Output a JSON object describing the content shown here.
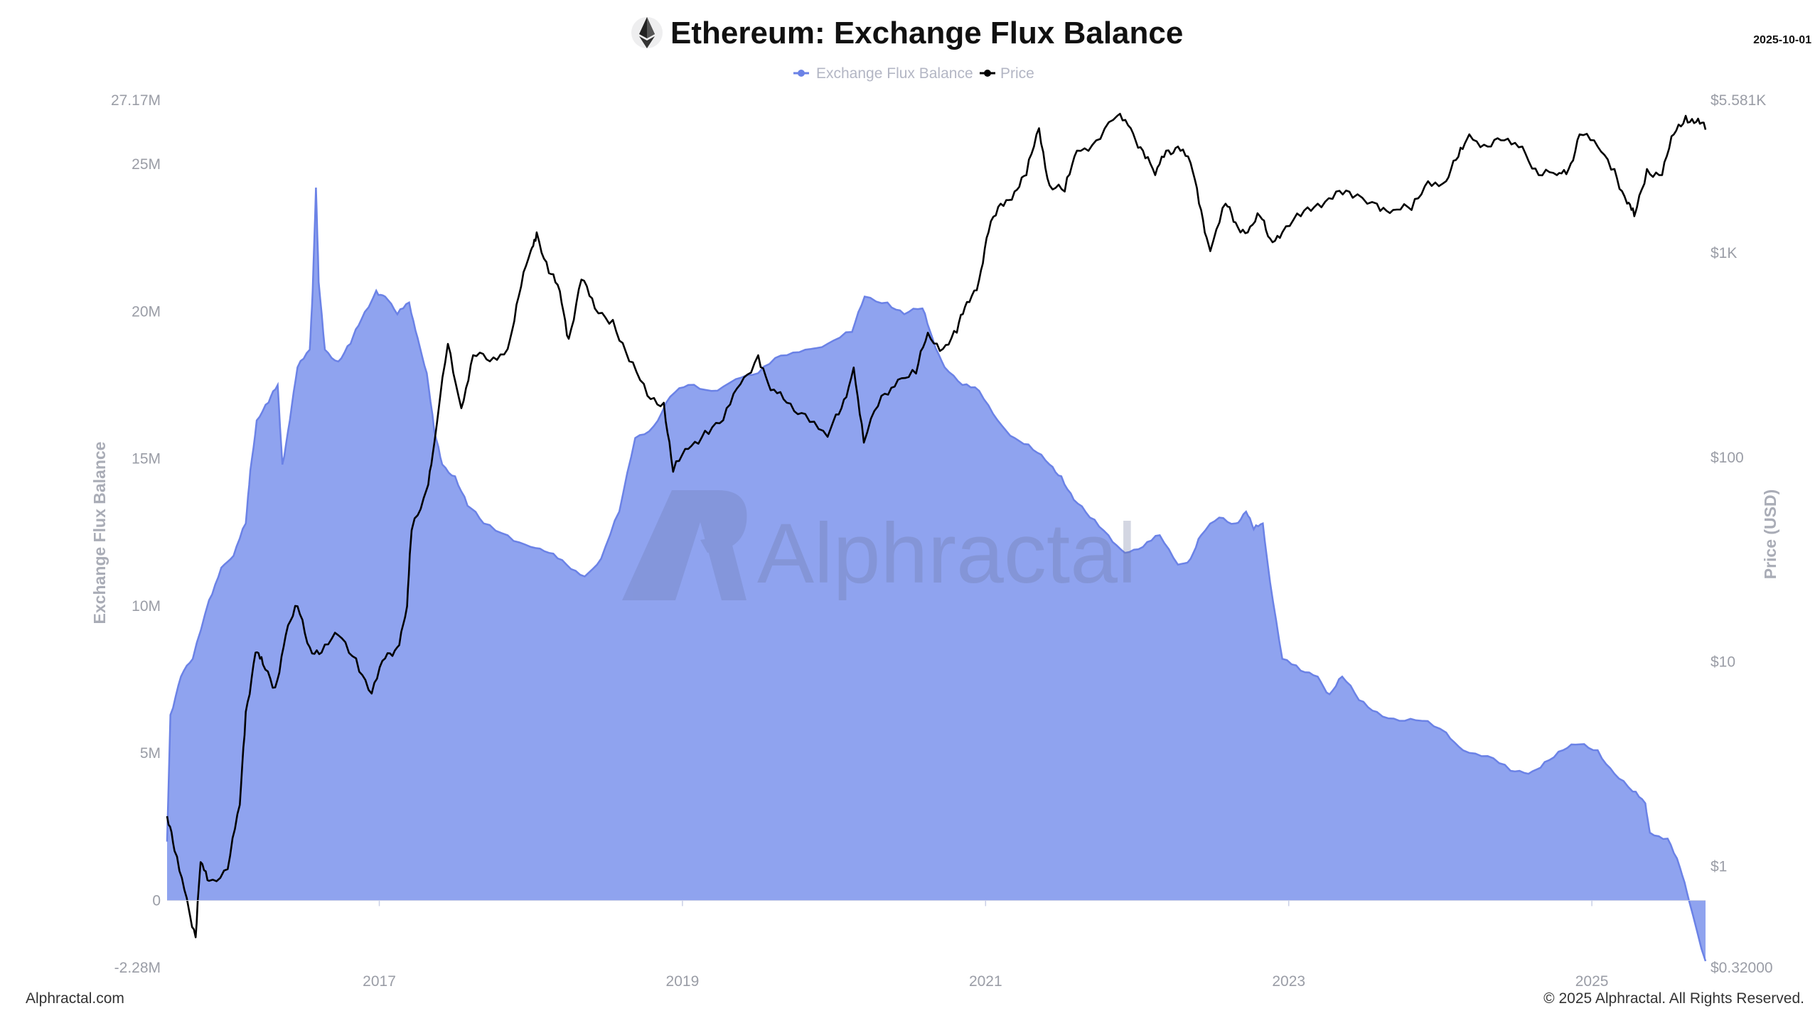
{
  "header": {
    "title": "Ethereum: Exchange Flux Balance",
    "date": "2025-10-01",
    "icon": "ethereum-icon"
  },
  "footer": {
    "left": "Alphractal.com",
    "right": "© 2025 Alphractal. All Rights Reserved."
  },
  "watermark": "Alphractal",
  "chart_data": {
    "type": "area+line",
    "title": "Ethereum: Exchange Flux Balance",
    "legend": {
      "placement": "top-center",
      "entries": [
        "Exchange Flux Balance",
        "Price"
      ]
    },
    "grid": false,
    "colors": {
      "flux_fill": "#8fa3ef",
      "flux_line": "#6b82e6",
      "price": "#000000"
    },
    "x": {
      "type": "date",
      "range": [
        "2015-08-07",
        "2025-10-01"
      ],
      "ticks": [
        "2017",
        "2019",
        "2021",
        "2023",
        "2025"
      ]
    },
    "y_left": {
      "label": "Exchange Flux Balance",
      "range": [
        -2.28,
        27.17
      ],
      "unit": "M",
      "ticks": [
        {
          "v": 27.17,
          "label": "27.17M"
        },
        {
          "v": 25,
          "label": "25M"
        },
        {
          "v": 20,
          "label": "20M"
        },
        {
          "v": 15,
          "label": "15M"
        },
        {
          "v": 10,
          "label": "10M"
        },
        {
          "v": 5,
          "label": "5M"
        },
        {
          "v": 0,
          "label": "0"
        },
        {
          "v": -2.28,
          "label": "-2.28M"
        }
      ]
    },
    "y_right": {
      "label": "Price (USD)",
      "scale": "log",
      "range": [
        0.32,
        5581
      ],
      "ticks": [
        {
          "v": 5581,
          "label": "$5.581K"
        },
        {
          "v": 1000,
          "label": "$1K"
        },
        {
          "v": 100,
          "label": "$100"
        },
        {
          "v": 10,
          "label": "$10"
        },
        {
          "v": 1,
          "label": "$1"
        },
        {
          "v": 0.32,
          "label": "$0.32000"
        }
      ]
    },
    "series": [
      {
        "name": "Exchange Flux Balance",
        "axis": "left",
        "unit": "M",
        "points": [
          [
            "2015-08-07",
            2.0
          ],
          [
            "2015-08-15",
            6.3
          ],
          [
            "2015-09-10",
            7.6
          ],
          [
            "2015-10-08",
            8.2
          ],
          [
            "2015-11-17",
            10.2
          ],
          [
            "2015-12-16",
            11.3
          ],
          [
            "2016-01-15",
            11.7
          ],
          [
            "2016-02-14",
            12.8
          ],
          [
            "2016-02-25",
            14.6
          ],
          [
            "2016-03-10",
            16.3
          ],
          [
            "2016-04-08",
            16.9
          ],
          [
            "2016-04-30",
            17.5
          ],
          [
            "2016-05-11",
            14.8
          ],
          [
            "2016-05-29",
            16.3
          ],
          [
            "2016-06-17",
            18.1
          ],
          [
            "2016-07-16",
            18.7
          ],
          [
            "2016-07-23",
            20.7
          ],
          [
            "2016-07-31",
            24.2
          ],
          [
            "2016-08-07",
            21.0
          ],
          [
            "2016-08-22",
            18.7
          ],
          [
            "2016-09-24",
            18.3
          ],
          [
            "2016-10-23",
            18.9
          ],
          [
            "2016-11-18",
            19.7
          ],
          [
            "2016-12-24",
            20.7
          ],
          [
            "2017-01-15",
            20.5
          ],
          [
            "2017-02-14",
            19.9
          ],
          [
            "2017-03-12",
            20.3
          ],
          [
            "2017-04-02",
            19.1
          ],
          [
            "2017-04-24",
            17.9
          ],
          [
            "2017-05-12",
            15.9
          ],
          [
            "2017-05-31",
            14.8
          ],
          [
            "2017-07-01",
            14.4
          ],
          [
            "2017-07-31",
            13.4
          ],
          [
            "2017-09-09",
            12.8
          ],
          [
            "2017-11-06",
            12.4
          ],
          [
            "2018-01-01",
            12.0
          ],
          [
            "2018-02-14",
            11.8
          ],
          [
            "2018-03-26",
            11.4
          ],
          [
            "2018-05-09",
            11.0
          ],
          [
            "2018-06-18",
            11.6
          ],
          [
            "2018-08-01",
            13.2
          ],
          [
            "2018-09-09",
            15.7
          ],
          [
            "2018-10-23",
            16.1
          ],
          [
            "2018-12-02",
            17.1
          ],
          [
            "2019-01-15",
            17.5
          ],
          [
            "2019-03-10",
            17.3
          ],
          [
            "2019-05-08",
            17.7
          ],
          [
            "2019-07-01",
            17.9
          ],
          [
            "2019-08-25",
            18.5
          ],
          [
            "2019-10-23",
            18.7
          ],
          [
            "2019-12-16",
            18.9
          ],
          [
            "2020-02-14",
            19.3
          ],
          [
            "2020-03-14",
            20.5
          ],
          [
            "2020-05-08",
            20.3
          ],
          [
            "2020-06-18",
            19.9
          ],
          [
            "2020-08-01",
            20.1
          ],
          [
            "2020-08-25",
            19.1
          ],
          [
            "2020-09-24",
            18.1
          ],
          [
            "2020-11-06",
            17.5
          ],
          [
            "2020-12-16",
            17.3
          ],
          [
            "2021-01-30",
            16.3
          ],
          [
            "2021-03-10",
            15.7
          ],
          [
            "2021-04-24",
            15.3
          ],
          [
            "2021-06-03",
            14.8
          ],
          [
            "2021-07-01",
            14.4
          ],
          [
            "2021-07-31",
            13.6
          ],
          [
            "2021-09-09",
            13.0
          ],
          [
            "2021-10-23",
            12.4
          ],
          [
            "2021-12-02",
            11.8
          ],
          [
            "2022-01-15",
            12.0
          ],
          [
            "2022-02-25",
            12.4
          ],
          [
            "2022-04-08",
            11.4
          ],
          [
            "2022-05-08",
            11.6
          ],
          [
            "2022-06-03",
            12.4
          ],
          [
            "2022-07-16",
            13.0
          ],
          [
            "2022-08-25",
            12.8
          ],
          [
            "2022-09-20",
            13.2
          ],
          [
            "2022-10-08",
            12.6
          ],
          [
            "2022-10-30",
            12.8
          ],
          [
            "2022-11-17",
            10.8
          ],
          [
            "2022-12-16",
            8.2
          ],
          [
            "2023-01-30",
            7.8
          ],
          [
            "2023-03-10",
            7.6
          ],
          [
            "2023-04-08",
            7.0
          ],
          [
            "2023-05-08",
            7.6
          ],
          [
            "2023-06-18",
            6.8
          ],
          [
            "2023-07-31",
            6.4
          ],
          [
            "2023-09-24",
            6.1
          ],
          [
            "2023-11-17",
            6.1
          ],
          [
            "2024-01-15",
            5.7
          ],
          [
            "2024-02-25",
            5.1
          ],
          [
            "2024-04-24",
            4.9
          ],
          [
            "2024-06-18",
            4.4
          ],
          [
            "2024-07-31",
            4.3
          ],
          [
            "2024-09-09",
            4.7
          ],
          [
            "2024-10-23",
            5.1
          ],
          [
            "2024-12-02",
            5.3
          ],
          [
            "2025-01-15",
            5.1
          ],
          [
            "2025-02-25",
            4.3
          ],
          [
            "2025-04-08",
            3.7
          ],
          [
            "2025-05-08",
            3.3
          ],
          [
            "2025-05-19",
            2.3
          ],
          [
            "2025-07-01",
            2.1
          ],
          [
            "2025-07-31",
            1.1
          ],
          [
            "2025-08-22",
            0
          ],
          [
            "2025-10-01",
            -2.06
          ]
        ]
      },
      {
        "name": "Price",
        "axis": "right",
        "unit": "USD",
        "points": [
          [
            "2015-08-07",
            1.76
          ],
          [
            "2015-08-25",
            1.19
          ],
          [
            "2015-09-24",
            0.7
          ],
          [
            "2015-10-15",
            0.45
          ],
          [
            "2015-10-27",
            1.05
          ],
          [
            "2015-11-17",
            0.85
          ],
          [
            "2016-01-01",
            0.97
          ],
          [
            "2016-01-30",
            2.0
          ],
          [
            "2016-02-14",
            5.7
          ],
          [
            "2016-03-07",
            11.1
          ],
          [
            "2016-03-25",
            9.7
          ],
          [
            "2016-04-24",
            7.5
          ],
          [
            "2016-05-19",
            13.5
          ],
          [
            "2016-06-17",
            18.7
          ],
          [
            "2016-07-16",
            11.8
          ],
          [
            "2016-08-14",
            11.1
          ],
          [
            "2016-09-24",
            13.5
          ],
          [
            "2016-11-06",
            10.4
          ],
          [
            "2016-12-13",
            7.0
          ],
          [
            "2017-01-15",
            10.4
          ],
          [
            "2017-02-14",
            11.8
          ],
          [
            "2017-03-07",
            18.7
          ],
          [
            "2017-03-18",
            44
          ],
          [
            "2017-04-24",
            70
          ],
          [
            "2017-05-12",
            118
          ],
          [
            "2017-06-14",
            359
          ],
          [
            "2017-07-16",
            174
          ],
          [
            "2017-08-14",
            316
          ],
          [
            "2017-09-24",
            295
          ],
          [
            "2017-11-06",
            339
          ],
          [
            "2017-12-02",
            610
          ],
          [
            "2018-01-01",
            1026
          ],
          [
            "2018-01-15",
            1260
          ],
          [
            "2018-02-14",
            795
          ],
          [
            "2018-03-10",
            650
          ],
          [
            "2018-04-01",
            380
          ],
          [
            "2018-05-01",
            740
          ],
          [
            "2018-06-03",
            535
          ],
          [
            "2018-07-16",
            470
          ],
          [
            "2018-08-25",
            295
          ],
          [
            "2018-10-08",
            200
          ],
          [
            "2018-11-17",
            185
          ],
          [
            "2018-12-09",
            85
          ],
          [
            "2019-01-15",
            110
          ],
          [
            "2019-02-25",
            135
          ],
          [
            "2019-04-08",
            152
          ],
          [
            "2019-05-19",
            228
          ],
          [
            "2019-07-01",
            316
          ],
          [
            "2019-07-31",
            213
          ],
          [
            "2019-09-09",
            185
          ],
          [
            "2019-10-23",
            163
          ],
          [
            "2019-12-16",
            126
          ],
          [
            "2020-01-19",
            174
          ],
          [
            "2020-02-18",
            275
          ],
          [
            "2020-03-12",
            118
          ],
          [
            "2020-04-24",
            200
          ],
          [
            "2020-06-03",
            240
          ],
          [
            "2020-07-16",
            257
          ],
          [
            "2020-08-14",
            407
          ],
          [
            "2020-09-20",
            339
          ],
          [
            "2020-10-23",
            407
          ],
          [
            "2020-11-17",
            575
          ],
          [
            "2020-12-16",
            740
          ],
          [
            "2021-01-08",
            1260
          ],
          [
            "2021-02-07",
            1740
          ],
          [
            "2021-03-10",
            1995
          ],
          [
            "2021-04-08",
            2400
          ],
          [
            "2021-05-08",
            4070
          ],
          [
            "2021-06-03",
            2140
          ],
          [
            "2021-07-09",
            1995
          ],
          [
            "2021-08-08",
            3160
          ],
          [
            "2021-09-24",
            3550
          ],
          [
            "2021-11-14",
            4680
          ],
          [
            "2021-12-16",
            4070
          ],
          [
            "2022-01-15",
            3160
          ],
          [
            "2022-02-14",
            2400
          ],
          [
            "2022-03-10",
            3160
          ],
          [
            "2022-04-08",
            3310
          ],
          [
            "2022-05-08",
            2750
          ],
          [
            "2022-06-03",
            1620
          ],
          [
            "2022-06-25",
            1020
          ],
          [
            "2022-08-01",
            1740
          ],
          [
            "2022-08-25",
            1410
          ],
          [
            "2022-09-24",
            1260
          ],
          [
            "2022-10-23",
            1510
          ],
          [
            "2022-11-17",
            1175
          ],
          [
            "2022-12-16",
            1260
          ],
          [
            "2023-01-30",
            1510
          ],
          [
            "2023-03-10",
            1740
          ],
          [
            "2023-04-24",
            1995
          ],
          [
            "2023-06-03",
            1860
          ],
          [
            "2023-07-31",
            1740
          ],
          [
            "2023-09-09",
            1620
          ],
          [
            "2023-10-23",
            1620
          ],
          [
            "2023-12-02",
            2240
          ],
          [
            "2024-01-15",
            2240
          ],
          [
            "2024-02-14",
            2950
          ],
          [
            "2024-03-10",
            3800
          ],
          [
            "2024-04-24",
            3310
          ],
          [
            "2024-06-03",
            3550
          ],
          [
            "2024-07-16",
            3310
          ],
          [
            "2024-08-25",
            2400
          ],
          [
            "2024-10-08",
            2400
          ],
          [
            "2024-11-06",
            2570
          ],
          [
            "2024-12-02",
            3800
          ],
          [
            "2025-01-15",
            3310
          ],
          [
            "2025-02-25",
            2570
          ],
          [
            "2025-03-25",
            1740
          ],
          [
            "2025-04-12",
            1510
          ],
          [
            "2025-05-12",
            2570
          ],
          [
            "2025-06-18",
            2400
          ],
          [
            "2025-07-16",
            3800
          ],
          [
            "2025-08-14",
            4680
          ],
          [
            "2025-09-09",
            4370
          ],
          [
            "2025-10-01",
            4000
          ]
        ]
      }
    ]
  }
}
